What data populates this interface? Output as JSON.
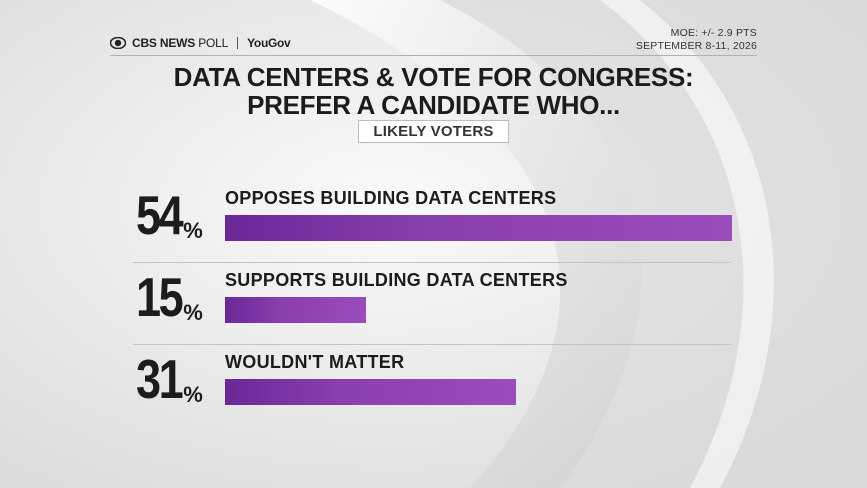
{
  "header": {
    "brand_cbs": "CBS NEWS",
    "brand_poll": "POLL",
    "brand_yougov": "YouGov",
    "moe": "MOE: +/- 2.9 PTS",
    "dates": "SEPTEMBER 8-11, 2026"
  },
  "colors": {
    "bar": "#8a3fae",
    "bar_dark": "#6a2896",
    "text": "#1c1c1c"
  },
  "chart_data": {
    "type": "bar",
    "orientation": "horizontal",
    "title_line1": "DATA CENTERS & VOTE FOR CONGRESS:",
    "title_line2": "PREFER A CANDIDATE WHO...",
    "subtitle": "LIKELY VOTERS",
    "unit": "%",
    "categories": [
      "OPPOSES BUILDING DATA CENTERS",
      "SUPPORTS BUILDING DATA CENTERS",
      "WOULDN'T MATTER"
    ],
    "values": [
      54,
      15,
      31
    ],
    "value_labels": [
      "54",
      "15",
      "31"
    ],
    "xlim": [
      0,
      54
    ],
    "grid": false
  }
}
